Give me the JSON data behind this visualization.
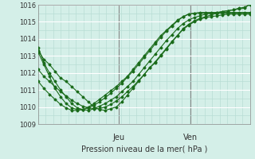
{
  "title": "",
  "xlabel": "Pression niveau de la mer( hPa )",
  "ylabel": "",
  "bg_color": "#d4efe8",
  "line_color": "#1a6b1a",
  "grid_color_major": "#ffffff",
  "grid_color_minor": "#b8ddd4",
  "ylim": [
    1009,
    1016
  ],
  "yticks": [
    1009,
    1010,
    1011,
    1012,
    1013,
    1014,
    1015,
    1016
  ],
  "vlines": [
    0.38,
    0.72
  ],
  "vline_labels": [
    "Jeu",
    "Ven"
  ],
  "series": [
    [
      1013.3,
      1012.8,
      1012.5,
      1012.1,
      1011.7,
      1011.5,
      1011.2,
      1010.9,
      1010.6,
      1010.3,
      1010.0,
      1009.85,
      1009.8,
      1009.9,
      1010.0,
      1010.3,
      1010.7,
      1011.1,
      1011.5,
      1011.9,
      1012.3,
      1012.6,
      1013.0,
      1013.4,
      1013.8,
      1014.2,
      1014.6,
      1014.85,
      1015.05,
      1015.2,
      1015.3,
      1015.4,
      1015.5,
      1015.6,
      1015.65,
      1015.7,
      1015.8,
      1015.85,
      1016.0
    ],
    [
      1013.5,
      1012.6,
      1012.0,
      1011.5,
      1011.0,
      1010.6,
      1010.2,
      1009.95,
      1009.85,
      1009.8,
      1009.9,
      1010.05,
      1010.2,
      1010.4,
      1010.6,
      1010.9,
      1011.2,
      1011.5,
      1011.9,
      1012.3,
      1012.7,
      1013.1,
      1013.5,
      1013.9,
      1014.25,
      1014.6,
      1014.9,
      1015.1,
      1015.25,
      1015.35,
      1015.45,
      1015.5,
      1015.55,
      1015.6,
      1015.65,
      1015.7,
      1015.75,
      1015.8,
      1016.05
    ],
    [
      1013.2,
      1012.5,
      1011.8,
      1011.1,
      1010.6,
      1010.2,
      1009.95,
      1009.85,
      1009.85,
      1010.0,
      1010.2,
      1010.45,
      1010.7,
      1010.95,
      1011.2,
      1011.5,
      1011.8,
      1012.2,
      1012.6,
      1013.0,
      1013.4,
      1013.8,
      1014.2,
      1014.5,
      1014.8,
      1015.1,
      1015.3,
      1015.45,
      1015.5,
      1015.55,
      1015.55,
      1015.55,
      1015.55,
      1015.55,
      1015.55,
      1015.55,
      1015.55,
      1015.55,
      1015.55
    ],
    [
      1012.2,
      1011.8,
      1011.5,
      1011.2,
      1010.9,
      1010.65,
      1010.4,
      1010.2,
      1010.05,
      1009.95,
      1009.9,
      1009.9,
      1010.0,
      1010.15,
      1010.35,
      1010.6,
      1010.9,
      1011.2,
      1011.55,
      1011.9,
      1012.3,
      1012.65,
      1013.05,
      1013.45,
      1013.85,
      1014.2,
      1014.55,
      1014.8,
      1015.0,
      1015.15,
      1015.25,
      1015.3,
      1015.35,
      1015.4,
      1015.45,
      1015.45,
      1015.45,
      1015.45,
      1015.45
    ],
    [
      1011.5,
      1011.1,
      1010.75,
      1010.45,
      1010.15,
      1009.95,
      1009.8,
      1009.8,
      1009.85,
      1009.95,
      1010.1,
      1010.3,
      1010.55,
      1010.8,
      1011.1,
      1011.4,
      1011.75,
      1012.1,
      1012.5,
      1012.9,
      1013.3,
      1013.7,
      1014.1,
      1014.45,
      1014.75,
      1015.05,
      1015.3,
      1015.45,
      1015.5,
      1015.5,
      1015.5,
      1015.5,
      1015.5,
      1015.5,
      1015.5,
      1015.5,
      1015.5,
      1015.5,
      1015.5
    ]
  ]
}
